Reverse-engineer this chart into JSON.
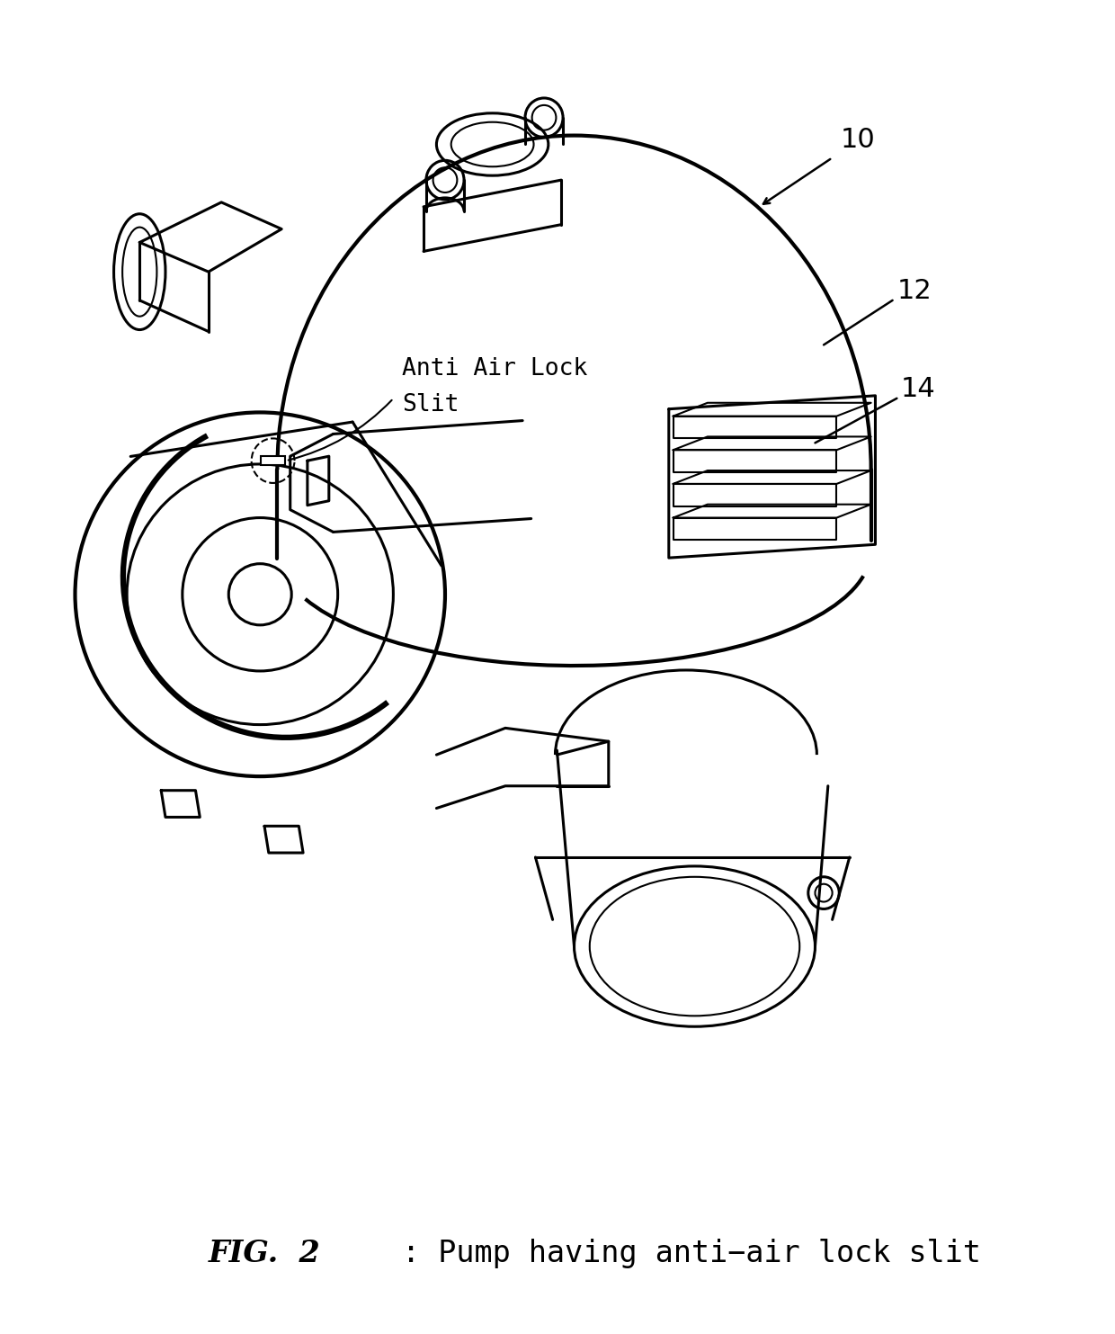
{
  "bg_color": "#ffffff",
  "line_color": "#000000",
  "lw_main": 2.2,
  "lw_thick": 3.0,
  "lw_thin": 1.5,
  "fig_width": 12.4,
  "fig_height": 14.83,
  "caption_italic": "FIG.  2",
  "caption_regular": ": Pump having anti−air lock slit",
  "label_10": "10",
  "label_12": "12",
  "label_14": "14",
  "annot_text_line1": "Anti Air Lock",
  "annot_text_line2": "Slit",
  "caption_fontsize": 24,
  "label_fontsize": 22,
  "annot_fontsize": 19
}
